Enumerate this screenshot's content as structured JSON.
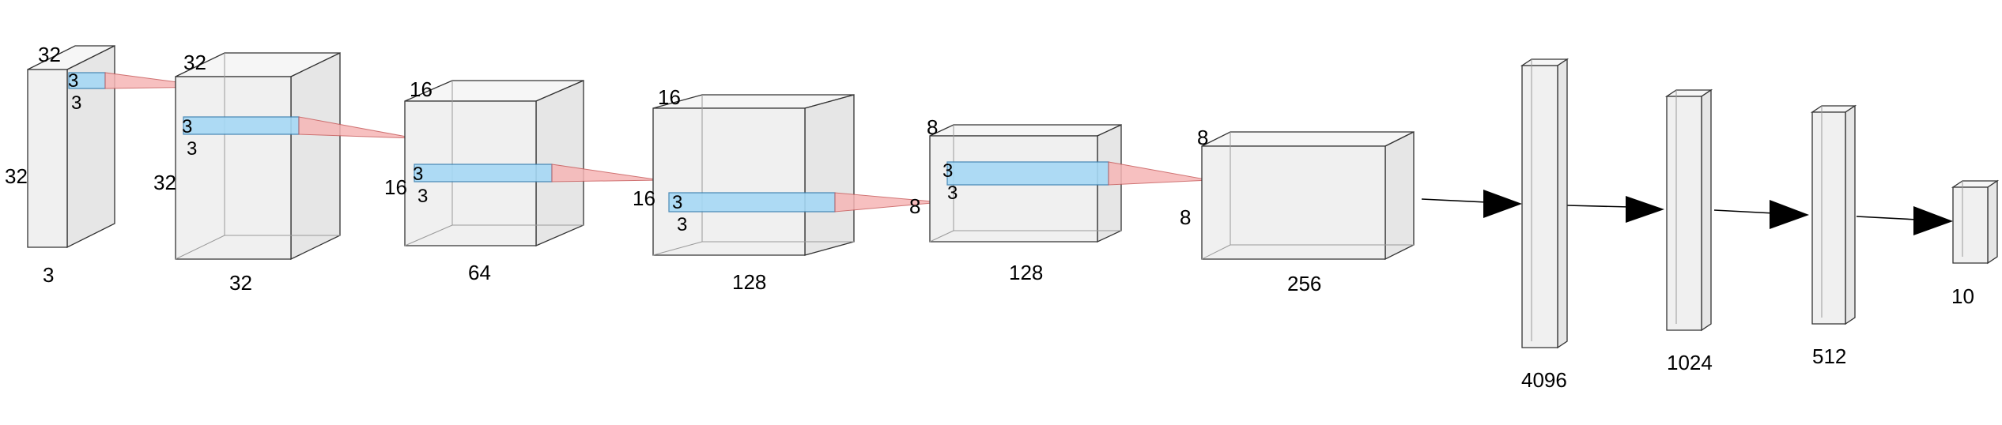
{
  "conv_layers": [
    {
      "label": "3",
      "height_label": "32",
      "depth_label": "32",
      "kernel": {
        "w": "3",
        "h": "3"
      }
    },
    {
      "label": "32",
      "height_label": "32",
      "depth_label": "32",
      "kernel": {
        "w": "3",
        "h": "3"
      }
    },
    {
      "label": "64",
      "height_label": "16",
      "depth_label": "16",
      "kernel": {
        "w": "3",
        "h": "3"
      }
    },
    {
      "label": "128",
      "height_label": "16",
      "depth_label": "16",
      "kernel": {
        "w": "3",
        "h": "3"
      }
    },
    {
      "label": "128",
      "height_label": "8",
      "depth_label": "8",
      "kernel": {
        "w": "3",
        "h": "3"
      }
    },
    {
      "label": "256",
      "height_label": "8",
      "depth_label": "8"
    }
  ],
  "dense_layers": [
    {
      "label": "4096"
    },
    {
      "label": "1024"
    },
    {
      "label": "512"
    },
    {
      "label": "10"
    }
  ]
}
